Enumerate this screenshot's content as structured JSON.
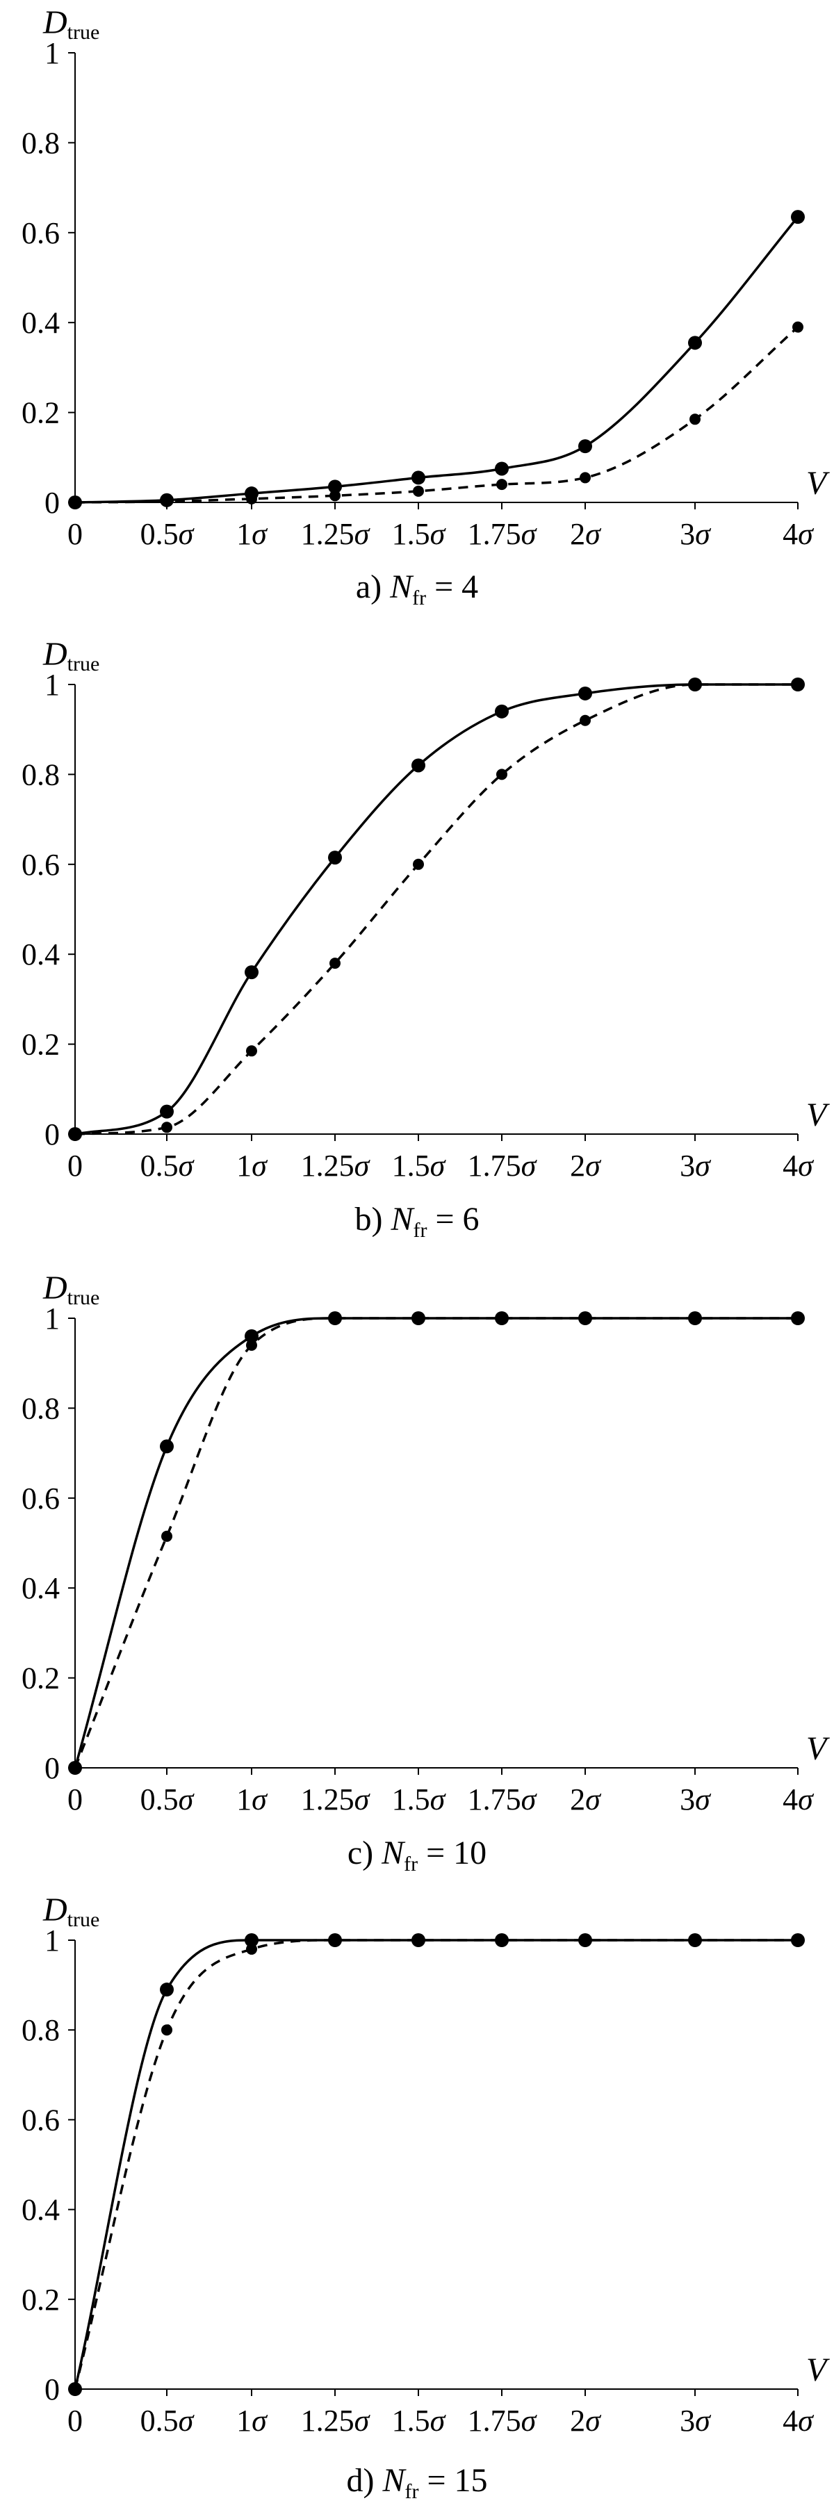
{
  "figure": {
    "panels": [
      {
        "caption_prefix": "a) ",
        "caption_var": "N",
        "caption_sub": "fr",
        "caption_rest": " = 4",
        "ylabel_var": "D",
        "ylabel_sub": "true",
        "xlabel": "V"
      },
      {
        "caption_prefix": "b) ",
        "caption_var": "N",
        "caption_sub": "fr",
        "caption_rest": " = 6",
        "ylabel_var": "D",
        "ylabel_sub": "true",
        "xlabel": "V"
      },
      {
        "caption_prefix": "c) ",
        "caption_var": "N",
        "caption_sub": "fr",
        "caption_rest": " = 10",
        "ylabel_var": "D",
        "ylabel_sub": "true",
        "xlabel": "V"
      },
      {
        "caption_prefix": "d) ",
        "caption_var": "N",
        "caption_sub": "fr",
        "caption_rest": " = 15",
        "ylabel_var": "D",
        "ylabel_sub": "true",
        "xlabel": "V"
      }
    ]
  },
  "chart_data": [
    {
      "type": "line",
      "title": "a) N_fr = 4",
      "xlabel": "V",
      "ylabel": "D_true",
      "categories": [
        "0",
        "0.5σ",
        "1σ",
        "1.25σ",
        "1.5σ",
        "1.75σ",
        "2σ",
        "3σ",
        "4σ"
      ],
      "yticks": [
        "0",
        "0.2",
        "0.4",
        "0.6",
        "0.8",
        "1"
      ],
      "ylim": [
        0,
        1
      ],
      "series": [
        {
          "style": "solid",
          "values": [
            0,
            0.005,
            0.02,
            0.035,
            0.055,
            0.075,
            0.125,
            0.355,
            0.635
          ]
        },
        {
          "style": "dashed",
          "values": [
            0,
            0.002,
            0.008,
            0.015,
            0.025,
            0.04,
            0.055,
            0.185,
            0.39
          ]
        }
      ]
    },
    {
      "type": "line",
      "title": "b) N_fr = 6",
      "xlabel": "V",
      "ylabel": "D_true",
      "categories": [
        "0",
        "0.5σ",
        "1σ",
        "1.25σ",
        "1.5σ",
        "1.75σ",
        "2σ",
        "3σ",
        "4σ"
      ],
      "yticks": [
        "0",
        "0.2",
        "0.4",
        "0.6",
        "0.8",
        "1"
      ],
      "ylim": [
        0,
        1
      ],
      "series": [
        {
          "style": "solid",
          "values": [
            0,
            0.05,
            0.36,
            0.615,
            0.82,
            0.94,
            0.98,
            1.0,
            1.0
          ]
        },
        {
          "style": "dashed",
          "values": [
            0,
            0.015,
            0.185,
            0.38,
            0.6,
            0.8,
            0.92,
            1.0,
            1.0
          ]
        }
      ]
    },
    {
      "type": "line",
      "title": "c) N_fr = 10",
      "xlabel": "V",
      "ylabel": "D_true",
      "categories": [
        "0",
        "0.5σ",
        "1σ",
        "1.25σ",
        "1.5σ",
        "1.75σ",
        "2σ",
        "3σ",
        "4σ"
      ],
      "yticks": [
        "0",
        "0.2",
        "0.4",
        "0.6",
        "0.8",
        "1"
      ],
      "ylim": [
        0,
        1
      ],
      "series": [
        {
          "style": "solid",
          "values": [
            0,
            0.715,
            0.96,
            1.0,
            1.0,
            1.0,
            1.0,
            1.0,
            1.0
          ]
        },
        {
          "style": "dashed",
          "values": [
            0,
            0.515,
            0.94,
            1.0,
            1.0,
            1.0,
            1.0,
            1.0,
            1.0
          ]
        }
      ]
    },
    {
      "type": "line",
      "title": "d) N_fr = 15",
      "xlabel": "V",
      "ylabel": "D_true",
      "categories": [
        "0",
        "0.5σ",
        "1σ",
        "1.25σ",
        "1.5σ",
        "1.75σ",
        "2σ",
        "3σ",
        "4σ"
      ],
      "yticks": [
        "0",
        "0.2",
        "0.4",
        "0.6",
        "0.8",
        "1"
      ],
      "ylim": [
        0,
        1
      ],
      "series": [
        {
          "style": "solid",
          "values": [
            0,
            0.89,
            1.0,
            1.0,
            1.0,
            1.0,
            1.0,
            1.0,
            1.0
          ]
        },
        {
          "style": "dashed",
          "values": [
            0,
            0.8,
            0.98,
            1.0,
            1.0,
            1.0,
            1.0,
            1.0,
            1.0
          ]
        }
      ]
    }
  ]
}
